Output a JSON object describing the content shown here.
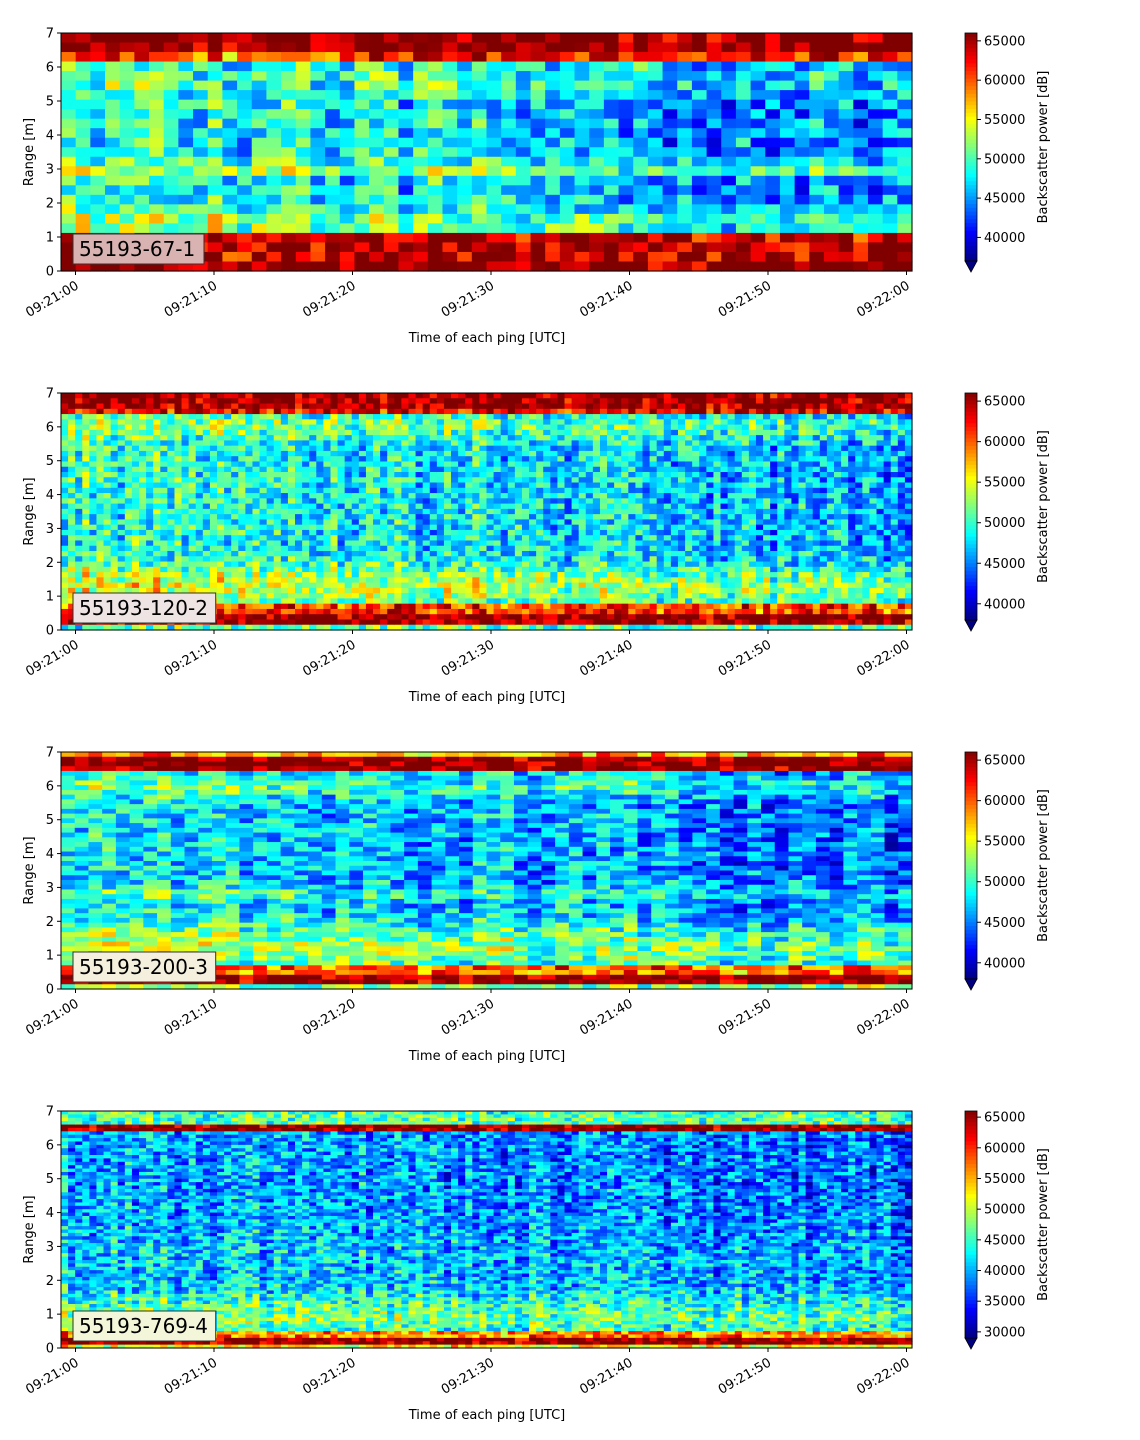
{
  "chart_data": [
    {
      "type": "heatmap",
      "label": "55193-67-1",
      "xlabel": "Time of each ping [UTC]",
      "ylabel": "Range [m]",
      "x_ticks": [
        "09:21:00",
        "09:21:10",
        "09:21:20",
        "09:21:30",
        "09:21:40",
        "09:21:50",
        "09:22:00"
      ],
      "x_range": [
        "09:21:00",
        "09:22:00"
      ],
      "y_ticks": [
        0,
        1,
        2,
        3,
        4,
        5,
        6,
        7
      ],
      "ylim": [
        0,
        7
      ],
      "colorbar_label": "Backscatter power [dB]",
      "colorbar_ticks": [
        40000,
        45000,
        50000,
        55000,
        60000,
        65000
      ],
      "colorbar_range": [
        37000,
        66000
      ],
      "colormap": "jet",
      "columns": 58,
      "rows": 25,
      "label_box_color": "#d9b2b2",
      "grid": false
    },
    {
      "type": "heatmap",
      "label": "55193-120-2",
      "xlabel": "Time of each ping [UTC]",
      "ylabel": "Range [m]",
      "x_ticks": [
        "09:21:00",
        "09:21:10",
        "09:21:20",
        "09:21:30",
        "09:21:40",
        "09:21:50",
        "09:22:00"
      ],
      "x_range": [
        "09:21:00",
        "09:22:00"
      ],
      "y_ticks": [
        0,
        1,
        2,
        3,
        4,
        5,
        6,
        7
      ],
      "ylim": [
        0,
        7
      ],
      "colorbar_label": "Backscatter power [dB]",
      "colorbar_ticks": [
        40000,
        45000,
        50000,
        55000,
        60000,
        65000
      ],
      "colorbar_range": [
        38000,
        66000
      ],
      "colormap": "jet",
      "columns": 120,
      "rows": 45,
      "label_box_color": "#efe4e4",
      "grid": false
    },
    {
      "type": "heatmap",
      "label": "55193-200-3",
      "xlabel": "Time of each ping [UTC]",
      "ylabel": "Range [m]",
      "x_ticks": [
        "09:21:00",
        "09:21:10",
        "09:21:20",
        "09:21:30",
        "09:21:40",
        "09:21:50",
        "09:22:00"
      ],
      "x_range": [
        "09:21:00",
        "09:22:00"
      ],
      "y_ticks": [
        0,
        1,
        2,
        3,
        4,
        5,
        6,
        7
      ],
      "ylim": [
        0,
        7
      ],
      "colorbar_label": "Backscatter power [dB]",
      "colorbar_ticks": [
        40000,
        45000,
        50000,
        55000,
        60000,
        65000
      ],
      "colorbar_range": [
        38000,
        66000
      ],
      "colormap": "jet",
      "columns": 62,
      "rows": 50,
      "label_box_color": "#f5f0dd",
      "grid": false
    },
    {
      "type": "heatmap",
      "label": "55193-769-4",
      "xlabel": "Time of each ping [UTC]",
      "ylabel": "Range [m]",
      "x_ticks": [
        "09:21:00",
        "09:21:10",
        "09:21:20",
        "09:21:30",
        "09:21:40",
        "09:21:50",
        "09:22:00"
      ],
      "x_range": [
        "09:21:00",
        "09:22:00"
      ],
      "y_ticks": [
        0,
        1,
        2,
        3,
        4,
        5,
        6,
        7
      ],
      "ylim": [
        0,
        7
      ],
      "colorbar_label": "Backscatter power [dB]",
      "colorbar_ticks": [
        30000,
        35000,
        40000,
        45000,
        50000,
        55000,
        60000,
        65000
      ],
      "colorbar_range": [
        29000,
        66000
      ],
      "colormap": "jet",
      "columns": 120,
      "rows": 70,
      "label_box_color": "#f3f6d8",
      "grid": false
    }
  ]
}
